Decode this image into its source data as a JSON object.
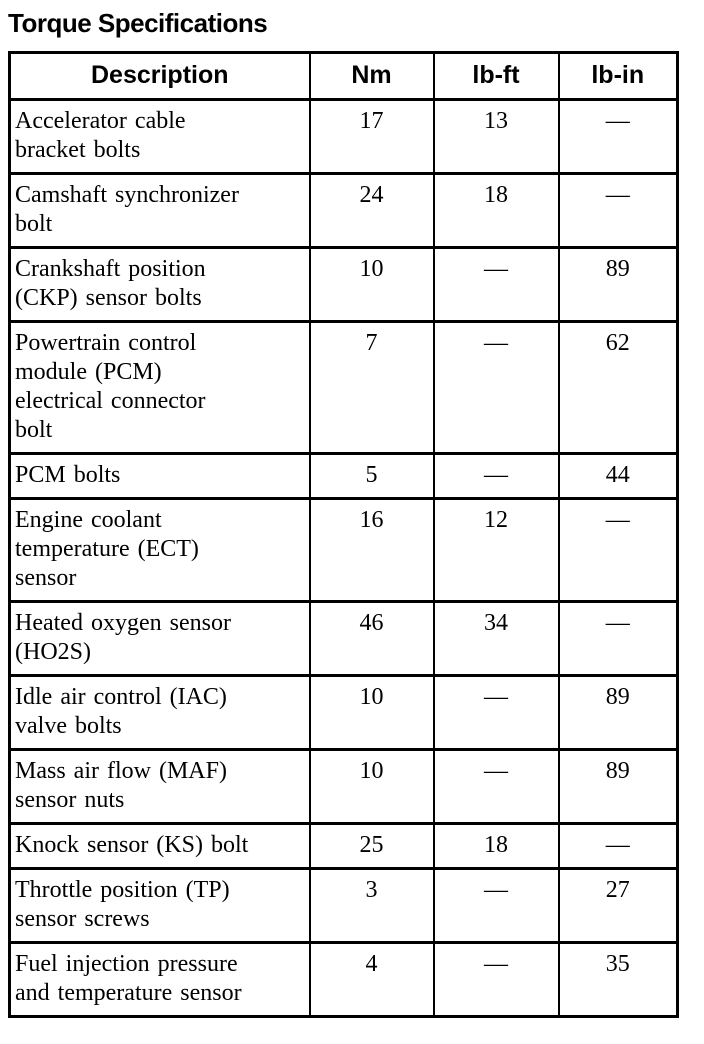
{
  "page": {
    "title": "Torque Specifications"
  },
  "colors": {
    "text": "#000000",
    "background": "#ffffff",
    "border": "#000000"
  },
  "table": {
    "headers": [
      "Description",
      "Nm",
      "lb-ft",
      "lb-in"
    ],
    "empty_value_symbol": "—",
    "rows": [
      {
        "description": "Accelerator cable\nbracket bolts",
        "nm": "17",
        "lb_ft": "13",
        "lb_in": "—"
      },
      {
        "description": "Camshaft synchronizer\nbolt",
        "nm": "24",
        "lb_ft": "18",
        "lb_in": "—"
      },
      {
        "description": "Crankshaft position\n(CKP) sensor bolts",
        "nm": "10",
        "lb_ft": "—",
        "lb_in": "89"
      },
      {
        "description": "Powertrain control\nmodule (PCM)\nelectrical connector\nbolt",
        "nm": "7",
        "lb_ft": "—",
        "lb_in": "62"
      },
      {
        "description": "PCM bolts",
        "nm": "5",
        "lb_ft": "—",
        "lb_in": "44"
      },
      {
        "description": "Engine coolant\ntemperature (ECT)\nsensor",
        "nm": "16",
        "lb_ft": "12",
        "lb_in": "—"
      },
      {
        "description": "Heated oxygen sensor\n(HO2S)",
        "nm": "46",
        "lb_ft": "34",
        "lb_in": "—"
      },
      {
        "description": "Idle air control (IAC)\nvalve bolts",
        "nm": "10",
        "lb_ft": "—",
        "lb_in": "89"
      },
      {
        "description": "Mass air flow (MAF)\nsensor nuts",
        "nm": "10",
        "lb_ft": "—",
        "lb_in": "89"
      },
      {
        "description": "Knock sensor (KS) bolt",
        "nm": "25",
        "lb_ft": "18",
        "lb_in": "—"
      },
      {
        "description": "Throttle position (TP)\nsensor screws",
        "nm": "3",
        "lb_ft": "—",
        "lb_in": "27"
      },
      {
        "description": "Fuel injection pressure\nand temperature sensor",
        "nm": "4",
        "lb_ft": "—",
        "lb_in": "35"
      }
    ]
  }
}
